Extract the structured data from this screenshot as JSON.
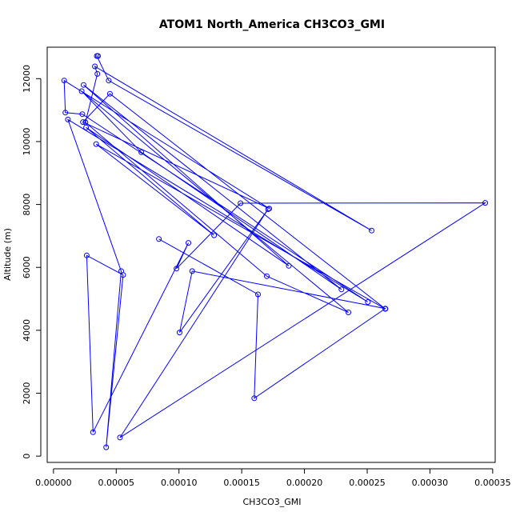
{
  "chart_data": {
    "type": "line",
    "title": "ATOM1 North_America CH3CO3_GMI",
    "xlabel": "CH3CO3_GMI",
    "ylabel": "Altitude (m)",
    "xlim": [
      -5e-06,
      0.000352
    ],
    "ylim": [
      -200,
      13000
    ],
    "x_ticks": [
      0.0,
      5e-05,
      0.0001,
      0.00015,
      0.0002,
      0.00025,
      0.0003,
      0.00035
    ],
    "x_tick_labels": [
      "0.00000",
      "0.00005",
      "0.00010",
      "0.00015",
      "0.00020",
      "0.00025",
      "0.00030",
      "0.00035"
    ],
    "y_ticks": [
      0,
      2000,
      4000,
      6000,
      8000,
      10000,
      12000
    ],
    "y_tick_labels": [
      "0",
      "2000",
      "4000",
      "6000",
      "8000",
      "10000",
      "12000"
    ],
    "grid": false,
    "color": "#0000ff",
    "series": [
      {
        "x": [
          3.55e-05,
          3.45e-05,
          4.4e-05,
          0.0002535,
          3.3e-05,
          3.5e-05,
          2.55e-05,
          0.00017,
          0.000235,
          2.25e-05,
          7e-05,
          0.0002295,
          2.4e-05,
          0.0001875,
          2.6e-05,
          0.000128,
          3.4e-05,
          0.0002645,
          4.5e-05,
          2.35e-05,
          0.000172,
          8.5e-06,
          9.5e-06,
          2.3e-05,
          0.0002505,
          1.15e-05,
          5.4e-05,
          4.2e-05,
          5.55e-05,
          2.65e-05,
          3.15e-05,
          0.0001075,
          9.8e-05,
          0.000149,
          0.000344,
          5.3e-05,
          0.000171,
          0.0001005,
          0.0001105,
          0.0002645,
          0.00016,
          0.000163,
          8.4e-05
        ],
        "y": [
          12720,
          12720,
          11940,
          7170,
          12390,
          12150,
          10610,
          5720,
          4570,
          11600,
          9660,
          5300,
          11800,
          6050,
          10450,
          7020,
          9920,
          4680,
          11520,
          10620,
          7870,
          11940,
          10920,
          10870,
          4900,
          10700,
          5880,
          280,
          5760,
          6380,
          760,
          6780,
          5960,
          8040,
          8050,
          590,
          7850,
          3930,
          5880,
          4690,
          1840,
          5140,
          6900
        ]
      }
    ]
  }
}
